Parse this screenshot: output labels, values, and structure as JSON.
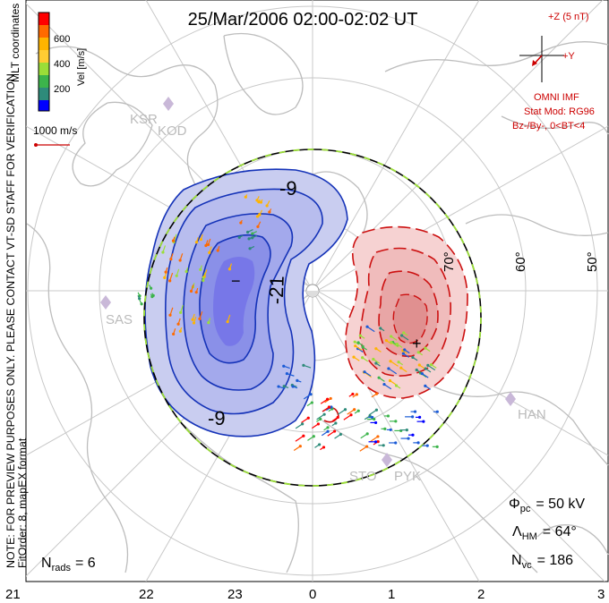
{
  "title": "25/Mar/2006 02:00-02:02 UT",
  "coordinates_label": "MLT coordinates",
  "colorbar": {
    "label": "Vel [m/s]",
    "ticks": [
      "600",
      "400",
      "200"
    ],
    "colors": [
      "#ff0000",
      "#ff6a00",
      "#ffb400",
      "#9bde38",
      "#3cb44b",
      "#2e8b7a",
      "#1a5bd6",
      "#0000ff"
    ]
  },
  "scale_vector": "1000 m/s",
  "imf": {
    "z_label": "+Z (5 nT)",
    "y_label": "+Y",
    "source": "OMNI IMF",
    "model": "Stat Mod: RG96",
    "condition": "Bz-/By-, 0<BT<4"
  },
  "watermark": "NOTE: FOR PREVIEW PURPOSES ONLY. PLEASE CONTACT VT-SD STAFF FOR VERIFICATION.",
  "fit": "FitOrder: 8, mapEX format",
  "stats": {
    "nrads_label": "N",
    "nrads_sub": "rads",
    "nrads_value": "= 6",
    "phi_label": "Φ",
    "phi_sub": "pc",
    "phi_value": "= 50 kV",
    "lambda_label": "Λ",
    "lambda_sub": "HM",
    "lambda_value": "= 64°",
    "nvc_label": "N",
    "nvc_sub": "vc",
    "nvc_value": "= 186"
  },
  "mlt_labels": [
    "21",
    "22",
    "23",
    "0",
    "1",
    "2",
    "3"
  ],
  "lat_labels": [
    "70°",
    "60°",
    "50°"
  ],
  "contour_labels": [
    "-9",
    "-21",
    "-9"
  ],
  "sites": [
    "KSR",
    "KOD",
    "SAS",
    "HAN",
    "STO",
    "PYK"
  ],
  "markers": {
    "min": "−",
    "max": "+"
  },
  "colors": {
    "negative_line": "#1533b8",
    "negative_fill": "#c9cdf0",
    "negative_core": "#7777e8",
    "positive_line": "#cc1010",
    "positive_fill": "#f6d2d2",
    "positive_core": "#e69a9a",
    "hmb_dash": "#9bde38",
    "map_gray": "#bdbdbd",
    "annotation_red": "#cc0000"
  }
}
